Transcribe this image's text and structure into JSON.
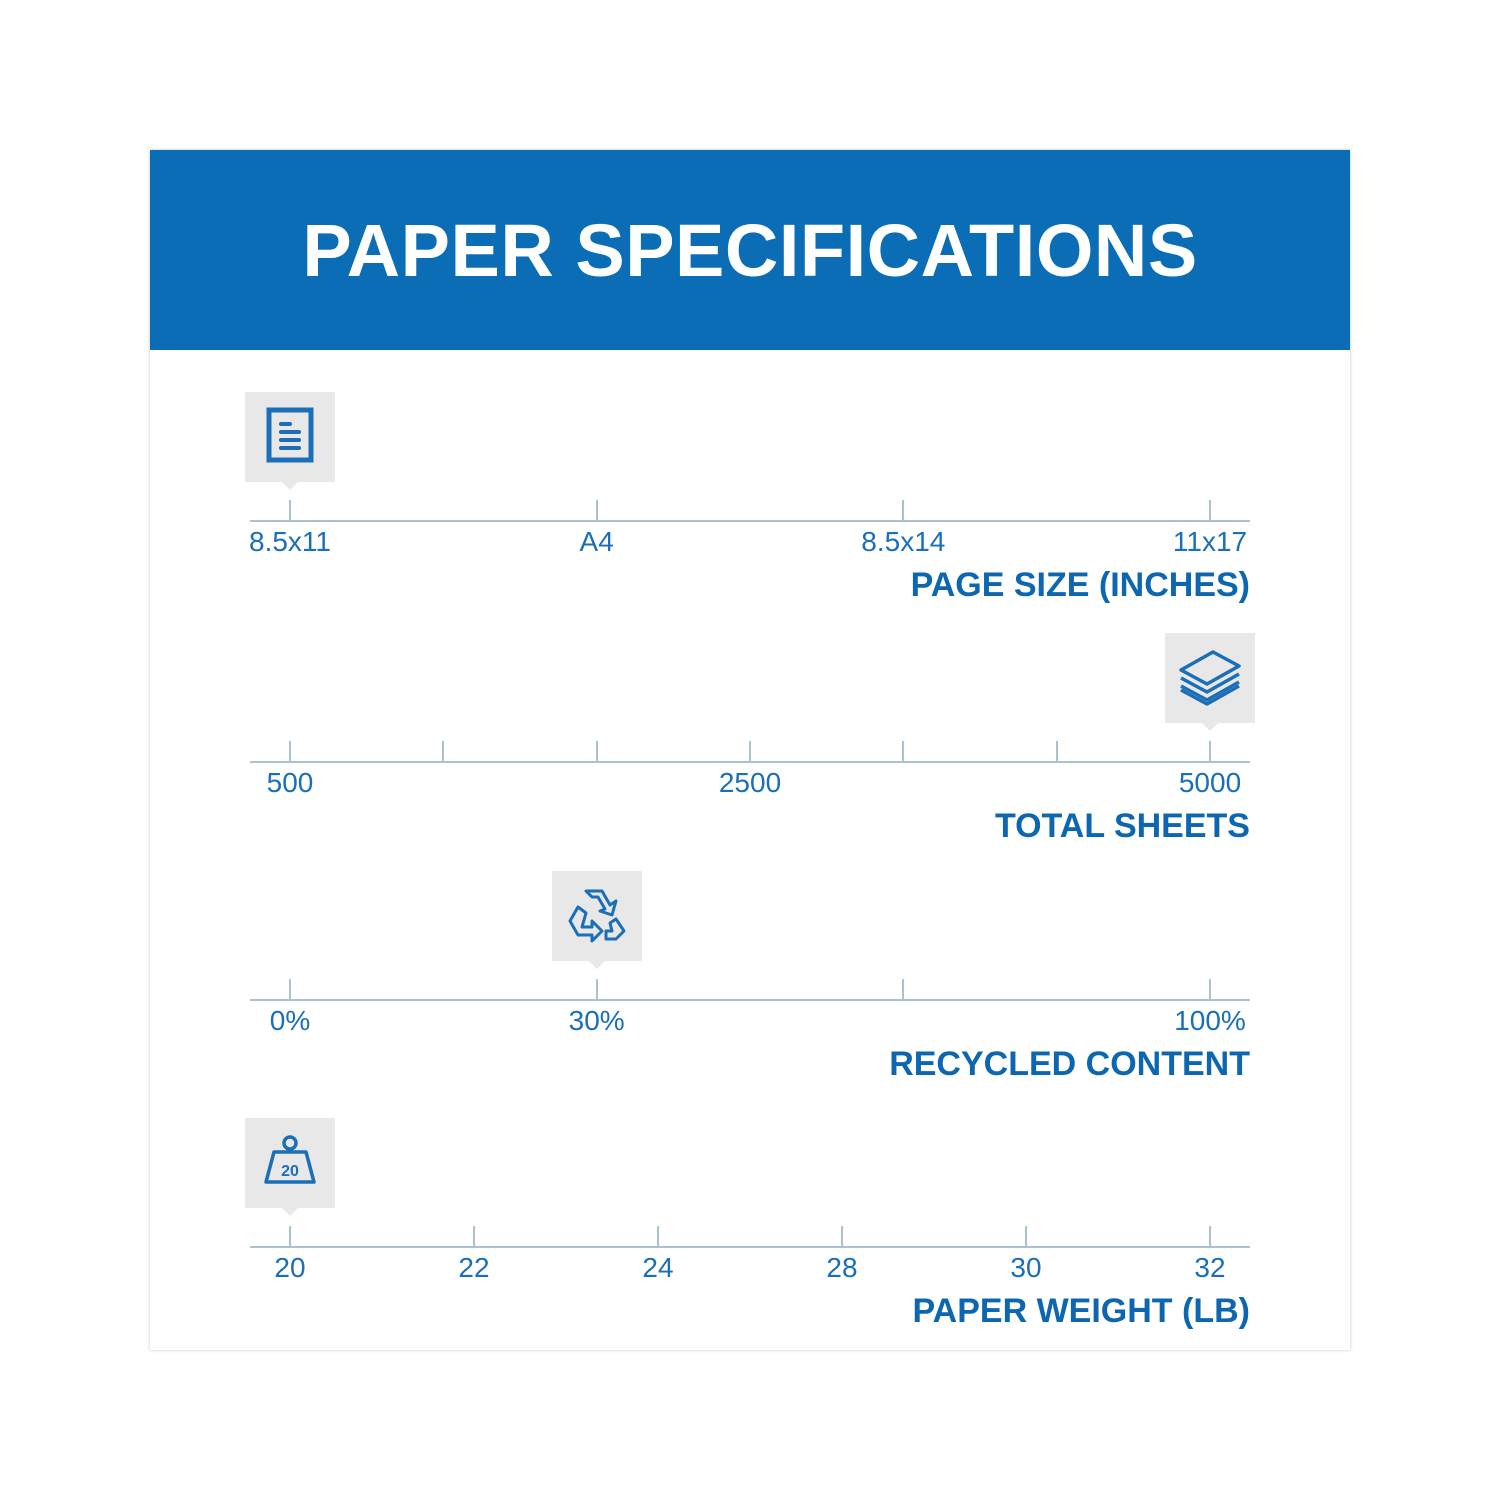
{
  "title": "PAPER SPECIFICATIONS",
  "colors": {
    "header": "#0a6db5",
    "text": "#1a6fb8",
    "axis": "#a9c2cc",
    "marker_bg": "#e8e8e8"
  },
  "sections": [
    {
      "title": "PAGE SIZE (INCHES)",
      "icon": "document-icon",
      "ticks": [
        "8.5x11",
        "A4",
        "8.5x14",
        "11x17"
      ],
      "selected": 0
    },
    {
      "title": "TOTAL SHEETS",
      "icon": "paper-stack-icon",
      "ticks": [
        "500",
        "",
        "",
        "2500",
        "",
        "",
        "5000"
      ],
      "selected": 6
    },
    {
      "title": "RECYCLED CONTENT",
      "icon": "recycle-icon",
      "ticks": [
        "0%",
        "30%",
        "",
        "100%"
      ],
      "selected": 1
    },
    {
      "title": "PAPER WEIGHT (LB)",
      "icon": "weight-icon",
      "icon_text": "20",
      "ticks": [
        "20",
        "22",
        "24",
        "28",
        "30",
        "32"
      ],
      "selected": 0
    }
  ]
}
